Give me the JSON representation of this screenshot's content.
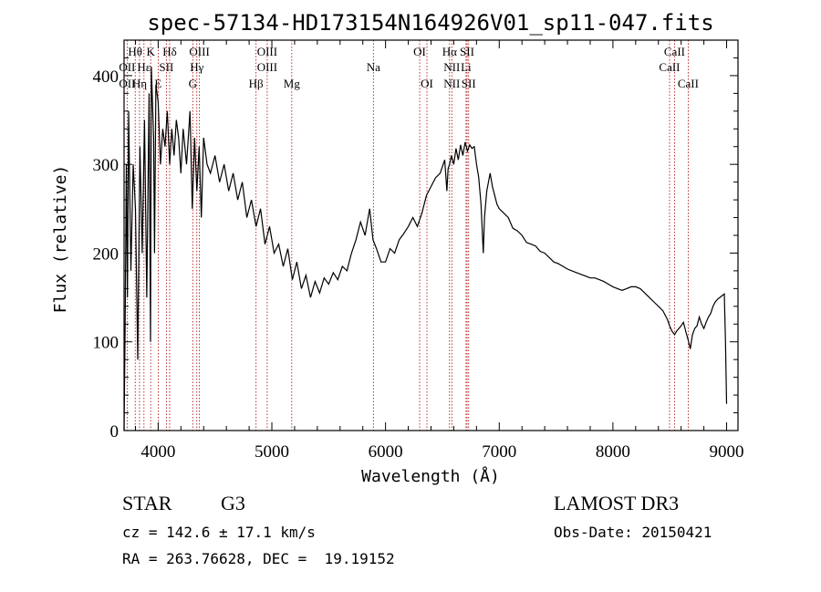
{
  "chart_data": {
    "type": "line",
    "title": "spec-57134-HD173154N164926V01_sp11-047.fits",
    "xlabel": "Wavelength (Å)",
    "ylabel": "Flux (relative)",
    "xlim": [
      3700,
      9100
    ],
    "ylim": [
      0,
      440
    ],
    "xticks": [
      4000,
      5000,
      6000,
      7000,
      8000,
      9000
    ],
    "yticks": [
      0,
      100,
      200,
      300,
      400
    ],
    "x": [
      3700,
      3710,
      3720,
      3730,
      3740,
      3760,
      3780,
      3800,
      3820,
      3840,
      3860,
      3880,
      3900,
      3920,
      3933,
      3940,
      3960,
      3968,
      3980,
      4000,
      4020,
      4040,
      4060,
      4080,
      4101,
      4120,
      4140,
      4160,
      4180,
      4200,
      4220,
      4250,
      4280,
      4300,
      4320,
      4340,
      4360,
      4380,
      4400,
      4430,
      4460,
      4500,
      4540,
      4580,
      4620,
      4660,
      4700,
      4740,
      4780,
      4820,
      4861,
      4900,
      4940,
      4980,
      5020,
      5060,
      5100,
      5140,
      5180,
      5220,
      5260,
      5300,
      5340,
      5380,
      5420,
      5460,
      5500,
      5540,
      5580,
      5620,
      5660,
      5700,
      5740,
      5780,
      5820,
      5860,
      5890,
      5920,
      5960,
      6000,
      6040,
      6080,
      6120,
      6160,
      6200,
      6240,
      6280,
      6320,
      6360,
      6400,
      6440,
      6480,
      6520,
      6540,
      6550,
      6563,
      6580,
      6600,
      6620,
      6640,
      6660,
      6680,
      6700,
      6720,
      6740,
      6760,
      6780,
      6800,
      6820,
      6840,
      6860,
      6870,
      6890,
      6920,
      6940,
      6960,
      6980,
      7000,
      7040,
      7080,
      7120,
      7160,
      7200,
      7240,
      7280,
      7320,
      7360,
      7400,
      7440,
      7480,
      7520,
      7560,
      7600,
      7640,
      7680,
      7720,
      7760,
      7800,
      7840,
      7880,
      7920,
      7960,
      8000,
      8040,
      8080,
      8120,
      8160,
      8200,
      8240,
      8280,
      8320,
      8360,
      8400,
      8440,
      8480,
      8498,
      8520,
      8542,
      8560,
      8600,
      8620,
      8640,
      8662,
      8680,
      8700,
      8720,
      8740,
      8760,
      8780,
      8800,
      8820,
      8840,
      8860,
      8880,
      8900,
      8920,
      8940,
      8960,
      8980,
      8990,
      9000
    ],
    "y": [
      0,
      120,
      300,
      150,
      360,
      180,
      300,
      250,
      80,
      320,
      200,
      350,
      150,
      380,
      100,
      410,
      330,
      200,
      390,
      370,
      300,
      340,
      320,
      360,
      300,
      340,
      310,
      350,
      330,
      290,
      340,
      300,
      360,
      250,
      330,
      270,
      320,
      240,
      330,
      300,
      290,
      310,
      280,
      300,
      270,
      290,
      260,
      280,
      240,
      260,
      230,
      250,
      210,
      230,
      200,
      210,
      185,
      205,
      170,
      190,
      160,
      175,
      150,
      168,
      155,
      172,
      165,
      178,
      170,
      185,
      180,
      200,
      215,
      235,
      220,
      250,
      215,
      205,
      190,
      190,
      205,
      200,
      215,
      222,
      230,
      240,
      230,
      245,
      265,
      275,
      285,
      290,
      305,
      270,
      295,
      300,
      310,
      300,
      318,
      305,
      322,
      310,
      325,
      315,
      322,
      318,
      320,
      300,
      285,
      255,
      200,
      240,
      270,
      290,
      275,
      265,
      255,
      250,
      245,
      240,
      228,
      225,
      220,
      212,
      210,
      208,
      202,
      200,
      195,
      190,
      188,
      185,
      182,
      180,
      178,
      176,
      174,
      172,
      172,
      170,
      168,
      165,
      162,
      160,
      158,
      160,
      162,
      162,
      160,
      155,
      150,
      145,
      140,
      135,
      125,
      118,
      112,
      108,
      112,
      118,
      122,
      112,
      102,
      92,
      108,
      115,
      118,
      128,
      120,
      115,
      122,
      128,
      132,
      140,
      145,
      148,
      150,
      152,
      154,
      100,
      30
    ]
  },
  "spectral_lines": [
    {
      "name": "Hθ",
      "wavelength": 3798,
      "row": 0
    },
    {
      "name": "OII",
      "wavelength": 3727,
      "row": 1
    },
    {
      "name": "OII",
      "wavelength": 3727,
      "row": 2
    },
    {
      "name": "Hε",
      "wavelength": 3875,
      "row": 1
    },
    {
      "name": "Hη",
      "wavelength": 3836,
      "row": 2
    },
    {
      "name": "K",
      "wavelength": 3934,
      "row": 0
    },
    {
      "name": "SII",
      "wavelength": 4072,
      "row": 1
    },
    {
      "name": "E",
      "wavelength": 4000,
      "row": 2
    },
    {
      "name": "Hδ",
      "wavelength": 4101,
      "row": 0
    },
    {
      "name": "OIII",
      "wavelength": 4363,
      "row": 0
    },
    {
      "name": "Hγ",
      "wavelength": 4340,
      "row": 1
    },
    {
      "name": "G",
      "wavelength": 4304,
      "row": 2
    },
    {
      "name": "OIII",
      "wavelength": 4959,
      "row": 0
    },
    {
      "name": "OIII",
      "wavelength": 4959,
      "row": 1
    },
    {
      "name": "Hβ",
      "wavelength": 4861,
      "row": 2
    },
    {
      "name": "Mg",
      "wavelength": 5175,
      "row": 2
    },
    {
      "name": "Na",
      "wavelength": 5893,
      "row": 1
    },
    {
      "name": "OI",
      "wavelength": 6300,
      "row": 0
    },
    {
      "name": "OI",
      "wavelength": 6364,
      "row": 2
    },
    {
      "name": "Hα",
      "wavelength": 6563,
      "row": 0
    },
    {
      "name": "SII",
      "wavelength": 6717,
      "row": 0
    },
    {
      "name": "NII",
      "wavelength": 6583,
      "row": 1
    },
    {
      "name": "Li",
      "wavelength": 6708,
      "row": 1
    },
    {
      "name": "NII",
      "wavelength": 6583,
      "row": 2
    },
    {
      "name": "SII",
      "wavelength": 6731,
      "row": 2
    },
    {
      "name": "CaII",
      "wavelength": 8542,
      "row": 0
    },
    {
      "name": "CaII",
      "wavelength": 8498,
      "row": 1
    },
    {
      "name": "CaII",
      "wavelength": 8662,
      "row": 2
    }
  ],
  "info": {
    "object_class": "STAR",
    "subclass": "G3",
    "survey": "LAMOST DR3",
    "redshift": "cz = 142.6 ± 17.1 km/s",
    "obs_date": "Obs-Date: 20150421",
    "coordinates": "RA = 263.76628, DEC =  19.19152"
  }
}
